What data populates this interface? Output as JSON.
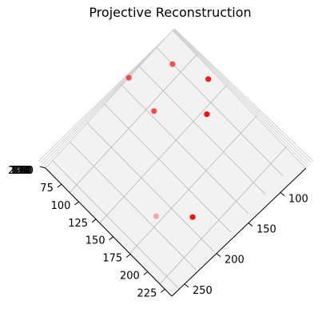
{
  "chart_data": {
    "type": "scatter",
    "title": "Projective Reconstruction",
    "projection": "3d",
    "point_color": "#ff0000",
    "grid": true,
    "x_axis": {
      "ticks": [
        100,
        150,
        200,
        250
      ],
      "range": [
        60,
        270
      ]
    },
    "y_axis": {
      "ticks": [
        75,
        100,
        125,
        150,
        175,
        200,
        225
      ],
      "range": [
        52,
        235
      ]
    },
    "z_axis": {
      "labels_overlapping": [
        "150",
        "160",
        "170",
        "180",
        "190",
        "200"
      ]
    },
    "points": [
      {
        "x": 60,
        "y": 115,
        "alpha": 0.65
      },
      {
        "x": 85,
        "y": 75,
        "alpha": 0.65
      },
      {
        "x": 125,
        "y": 60,
        "alpha": 0.9
      },
      {
        "x": 150,
        "y": 85,
        "alpha": 0.95
      },
      {
        "x": 105,
        "y": 120,
        "alpha": 0.7
      },
      {
        "x": 185,
        "y": 190,
        "alpha": 0.3
      },
      {
        "x": 215,
        "y": 165,
        "alpha": 0.95
      }
    ]
  }
}
